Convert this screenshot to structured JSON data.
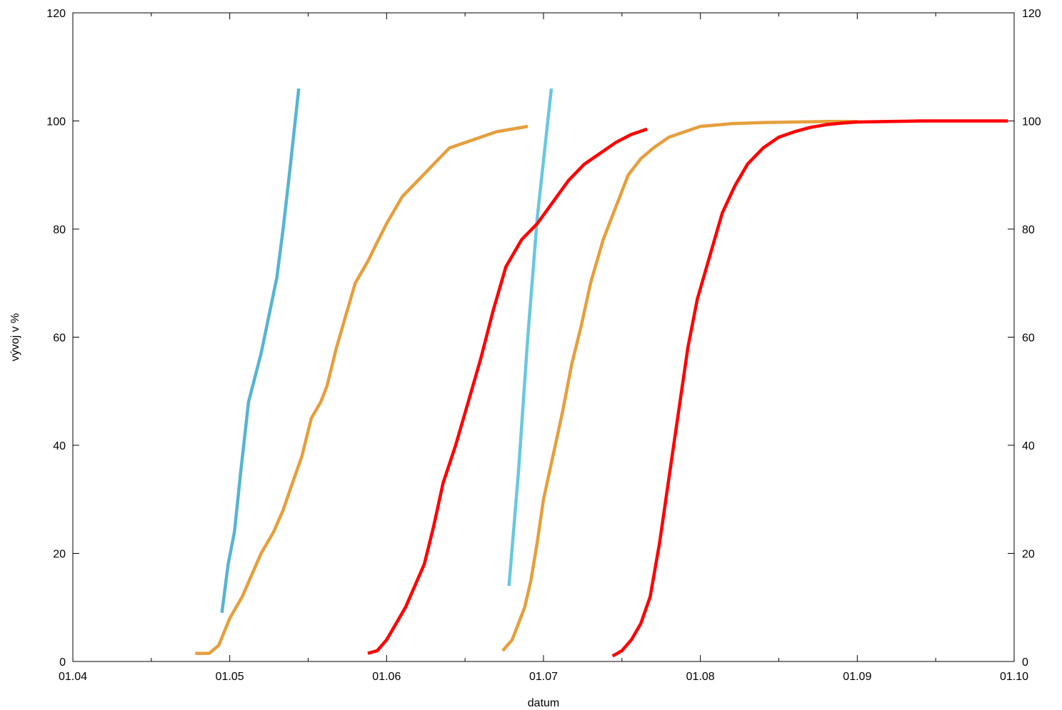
{
  "chart_data": {
    "type": "line",
    "title": "",
    "xlabel": "datum",
    "ylabel": "vývoj v %",
    "x_tick_labels": [
      "01.04",
      "01.05",
      "01.06",
      "01.07",
      "01.08",
      "01.09",
      "01.10"
    ],
    "y_ticks": [
      0,
      20,
      40,
      60,
      80,
      100,
      120
    ],
    "y_tick_labels": [
      "0",
      "20",
      "40",
      "60",
      "80",
      "100",
      "120"
    ],
    "ylim": [
      0,
      120
    ],
    "xlim": [
      0,
      6
    ],
    "grid": false,
    "series": [
      {
        "color": "#56b4d3",
        "points": [
          [
            0.95,
            9
          ],
          [
            0.99,
            18
          ],
          [
            1.03,
            24
          ],
          [
            1.07,
            35
          ],
          [
            1.12,
            48
          ],
          [
            1.2,
            57
          ],
          [
            1.25,
            64
          ],
          [
            1.3,
            71
          ],
          [
            1.34,
            80
          ],
          [
            1.38,
            90
          ],
          [
            1.44,
            106
          ]
        ]
      },
      {
        "color": "#68c8e0",
        "points": [
          [
            2.78,
            14
          ],
          [
            2.84,
            35
          ],
          [
            2.9,
            60
          ],
          [
            2.96,
            82
          ],
          [
            3.02,
            98
          ],
          [
            3.05,
            106
          ]
        ]
      },
      {
        "color": "#e69f3c",
        "points": [
          [
            0.78,
            1.5
          ],
          [
            0.87,
            1.5
          ],
          [
            0.93,
            3
          ],
          [
            1.0,
            8
          ],
          [
            1.08,
            12
          ],
          [
            1.14,
            16
          ],
          [
            1.2,
            20
          ],
          [
            1.28,
            24
          ],
          [
            1.34,
            28
          ],
          [
            1.4,
            33
          ],
          [
            1.46,
            38
          ],
          [
            1.52,
            45
          ],
          [
            1.58,
            48
          ],
          [
            1.62,
            51
          ],
          [
            1.68,
            58
          ],
          [
            1.73,
            63
          ],
          [
            1.8,
            70
          ],
          [
            1.88,
            74
          ],
          [
            1.93,
            77
          ],
          [
            2.0,
            81
          ],
          [
            2.1,
            86
          ],
          [
            2.2,
            89
          ],
          [
            2.3,
            92
          ],
          [
            2.4,
            95
          ],
          [
            2.5,
            96
          ],
          [
            2.6,
            97
          ],
          [
            2.7,
            98
          ],
          [
            2.8,
            98.5
          ],
          [
            2.9,
            99
          ]
        ]
      },
      {
        "color": "#e69f3c",
        "points": [
          [
            2.74,
            2
          ],
          [
            2.8,
            4
          ],
          [
            2.84,
            7
          ],
          [
            2.88,
            10
          ],
          [
            2.92,
            15
          ],
          [
            2.96,
            22
          ],
          [
            3.0,
            30
          ],
          [
            3.06,
            38
          ],
          [
            3.12,
            46
          ],
          [
            3.18,
            55
          ],
          [
            3.24,
            62
          ],
          [
            3.3,
            70
          ],
          [
            3.38,
            78
          ],
          [
            3.46,
            84
          ],
          [
            3.54,
            90
          ],
          [
            3.62,
            93
          ],
          [
            3.7,
            95
          ],
          [
            3.8,
            97
          ],
          [
            3.9,
            98
          ],
          [
            4.0,
            99
          ],
          [
            4.2,
            99.5
          ],
          [
            4.4,
            99.7
          ],
          [
            4.6,
            99.8
          ],
          [
            4.8,
            99.9
          ],
          [
            5.0,
            99.9
          ]
        ]
      },
      {
        "color": "#ff0000",
        "points": [
          [
            1.88,
            1.5
          ],
          [
            1.94,
            2
          ],
          [
            2.0,
            4
          ],
          [
            2.06,
            7
          ],
          [
            2.12,
            10
          ],
          [
            2.18,
            14
          ],
          [
            2.24,
            18
          ],
          [
            2.3,
            25
          ],
          [
            2.36,
            33
          ],
          [
            2.44,
            40
          ],
          [
            2.52,
            48
          ],
          [
            2.6,
            56
          ],
          [
            2.68,
            65
          ],
          [
            2.76,
            73
          ],
          [
            2.86,
            78
          ],
          [
            2.96,
            81
          ],
          [
            3.06,
            85
          ],
          [
            3.16,
            89
          ],
          [
            3.26,
            92
          ],
          [
            3.36,
            94
          ],
          [
            3.46,
            96
          ],
          [
            3.56,
            97.5
          ],
          [
            3.66,
            98.5
          ]
        ]
      },
      {
        "color": "#ff0000",
        "points": [
          [
            3.44,
            1
          ],
          [
            3.5,
            2
          ],
          [
            3.56,
            4
          ],
          [
            3.62,
            7
          ],
          [
            3.68,
            12
          ],
          [
            3.74,
            22
          ],
          [
            3.8,
            34
          ],
          [
            3.86,
            46
          ],
          [
            3.92,
            58
          ],
          [
            3.98,
            67
          ],
          [
            4.06,
            75
          ],
          [
            4.14,
            83
          ],
          [
            4.22,
            88
          ],
          [
            4.3,
            92
          ],
          [
            4.4,
            95
          ],
          [
            4.5,
            97
          ],
          [
            4.6,
            98
          ],
          [
            4.7,
            98.8
          ],
          [
            4.8,
            99.3
          ],
          [
            4.9,
            99.6
          ],
          [
            5.0,
            99.8
          ],
          [
            5.2,
            99.9
          ],
          [
            5.4,
            100
          ],
          [
            5.6,
            100
          ],
          [
            5.8,
            100
          ],
          [
            5.96,
            100
          ]
        ]
      }
    ]
  }
}
